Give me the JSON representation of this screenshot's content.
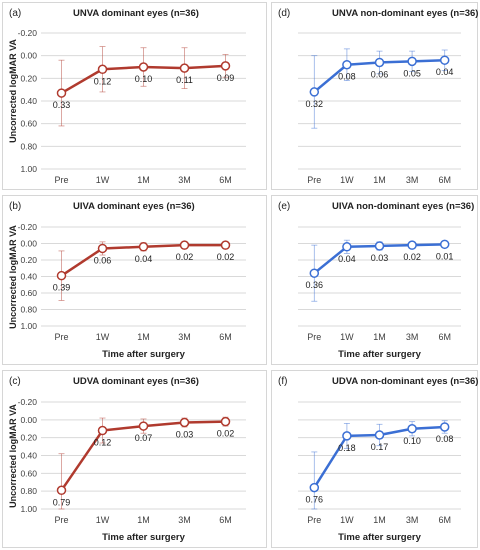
{
  "colors": {
    "dominant": "#B03A2E",
    "non_dominant": "#3B6FD4",
    "grid": "#D9D9D9",
    "axis_text": "#404040"
  },
  "ylabel": "Uncorrected logMAR VA",
  "xlabel": "Time after surgery",
  "chart_data": [
    {
      "type": "line",
      "panel": "(a)",
      "title": "UNVA dominant eyes (n=36)",
      "categories": [
        "Pre",
        "1W",
        "1M",
        "3M",
        "6M"
      ],
      "series": [
        {
          "values": [
            0.33,
            0.12,
            0.1,
            0.11,
            0.09
          ],
          "error": [
            0.29,
            0.2,
            0.17,
            0.18,
            0.1
          ]
        }
      ],
      "labels": [
        "0.33",
        "0.12",
        "0.10",
        "0.11",
        "0.09"
      ],
      "yticks": [
        "-0.20",
        "0.00",
        "0.20",
        "0.40",
        "0.60",
        "0.80",
        "1.00"
      ],
      "ylim": [
        -0.2,
        1.0
      ],
      "y_inverted": true,
      "grid": true,
      "ylabel": "Uncorrected logMAR VA",
      "xlabel": "",
      "color": "dominant"
    },
    {
      "type": "line",
      "panel": "(d)",
      "title": "UNVA non-dominant eyes (n=36)",
      "categories": [
        "Pre",
        "1W",
        "1M",
        "3M",
        "6M"
      ],
      "series": [
        {
          "values": [
            0.32,
            0.08,
            0.06,
            0.05,
            0.04
          ],
          "error": [
            0.32,
            0.14,
            0.1,
            0.09,
            0.09
          ]
        }
      ],
      "labels": [
        "0.32",
        "0.08",
        "0.06",
        "0.05",
        "0.04"
      ],
      "yticks": [],
      "ylim": [
        -0.2,
        1.0
      ],
      "y_inverted": true,
      "grid": true,
      "ylabel": "",
      "xlabel": "",
      "color": "non_dominant"
    },
    {
      "type": "line",
      "panel": "(b)",
      "title": "UIVA dominant eyes (n=36)",
      "categories": [
        "Pre",
        "1W",
        "1M",
        "3M",
        "6M"
      ],
      "series": [
        {
          "values": [
            0.39,
            0.06,
            0.04,
            0.02,
            0.02
          ],
          "error": [
            0.3,
            0.08,
            0.05,
            0.04,
            0.04
          ]
        }
      ],
      "labels": [
        "0.39",
        "0.06",
        "0.04",
        "0.02",
        "0.02"
      ],
      "yticks": [
        "-0.20",
        "0.00",
        "0.20",
        "0.40",
        "0.60",
        "0.80",
        "1.00"
      ],
      "ylim": [
        -0.2,
        1.0
      ],
      "y_inverted": true,
      "grid": true,
      "ylabel": "Uncorrected logMAR VA",
      "xlabel": "Time after surgery",
      "color": "dominant"
    },
    {
      "type": "line",
      "panel": "(e)",
      "title": "UIVA non-dominant eyes (n=36)",
      "categories": [
        "Pre",
        "1W",
        "1M",
        "3M",
        "6M"
      ],
      "series": [
        {
          "values": [
            0.36,
            0.04,
            0.03,
            0.02,
            0.01
          ],
          "error": [
            0.34,
            0.08,
            0.05,
            0.04,
            0.03
          ]
        }
      ],
      "labels": [
        "0.36",
        "0.04",
        "0.03",
        "0.02",
        "0.01"
      ],
      "yticks": [],
      "ylim": [
        -0.2,
        1.0
      ],
      "y_inverted": true,
      "grid": true,
      "ylabel": "",
      "xlabel": "Time after surgery",
      "color": "non_dominant"
    },
    {
      "type": "line",
      "panel": "(c)",
      "title": "UDVA dominant eyes (n=36)",
      "categories": [
        "Pre",
        "1W",
        "1M",
        "3M",
        "6M"
      ],
      "series": [
        {
          "values": [
            0.79,
            0.12,
            0.07,
            0.03,
            0.02
          ],
          "error": [
            0.41,
            0.14,
            0.08,
            0.05,
            0.05
          ]
        }
      ],
      "labels": [
        "0.79",
        "0.12",
        "0.07",
        "0.03",
        "0.02"
      ],
      "yticks": [
        "-0.20",
        "0.00",
        "0.20",
        "0.40",
        "0.60",
        "0.80",
        "1.00"
      ],
      "ylim": [
        -0.2,
        1.0
      ],
      "y_inverted": true,
      "grid": true,
      "ylabel": "Uncorrected logMAR VA",
      "xlabel": "Time after surgery",
      "color": "dominant"
    },
    {
      "type": "line",
      "panel": "(f)",
      "title": "UDVA non-dominant eyes (n=36)",
      "categories": [
        "Pre",
        "1W",
        "1M",
        "3M",
        "6M"
      ],
      "series": [
        {
          "values": [
            0.76,
            0.18,
            0.17,
            0.1,
            0.08
          ],
          "error": [
            0.4,
            0.14,
            0.12,
            0.08,
            0.07
          ]
        }
      ],
      "labels": [
        "0.76",
        "0.18",
        "0.17",
        "0.10",
        "0.08"
      ],
      "yticks": [],
      "ylim": [
        -0.2,
        1.0
      ],
      "y_inverted": true,
      "grid": true,
      "ylabel": "",
      "xlabel": "Time after surgery",
      "color": "non_dominant"
    }
  ]
}
